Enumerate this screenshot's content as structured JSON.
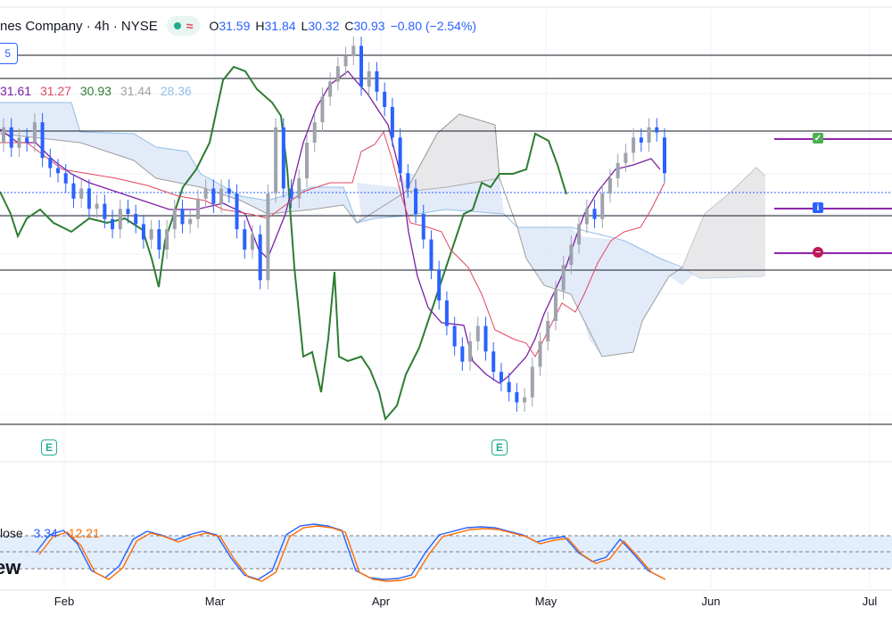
{
  "header": {
    "symbol_title": "nes Company · 4h · NYSE",
    "wave_glyph": "≈",
    "ohlc": [
      {
        "k": "O",
        "v": "31.59"
      },
      {
        "k": "H",
        "v": "31.84"
      },
      {
        "k": "L",
        "v": "30.32"
      },
      {
        "k": "C",
        "v": "30.93"
      }
    ],
    "change": "−0.80 (−2.54%)"
  },
  "badge_label": "5",
  "ichimoku_values": [
    {
      "v": "31.61",
      "color": "#7b1fa2"
    },
    {
      "v": "31.27",
      "color": "#e0475e"
    },
    {
      "v": "30.93",
      "color": "#2e7d32"
    },
    {
      "v": "31.44",
      "color": "#a0a0a0"
    },
    {
      "v": "28.36",
      "color": "#90bfe8"
    }
  ],
  "stoch": {
    "name": "lose",
    "k": "3.34",
    "d": "12.21"
  },
  "logo_text": "ew",
  "earnings_label": "E",
  "colors": {
    "up": "#9ea3ad",
    "down": "#2962ff",
    "conversion": "#7b1fa2",
    "base": "#e0475e",
    "lagging": "#2e7d32",
    "kumo_bull": "#d9e4f7",
    "kumo_bear": "#e8e8ea",
    "span_a": "#90bfe8",
    "span_b": "#9e9e9e",
    "hline": "#131722",
    "check": "#4caf50",
    "info": "#2962ff",
    "stop": "#c2185b",
    "stoch_k": "#2962ff",
    "stoch_d": "#ff6d00"
  },
  "chart_data": {
    "type": "candlestick",
    "x_labels": [
      "Feb",
      "Mar",
      "Apr",
      "May",
      "Jun",
      "Jul"
    ],
    "horizontal_levels": [
      33.3,
      32.85,
      31.9,
      30.05,
      29.05,
      26.2
    ],
    "last_price_line": 30.47,
    "trade_markers": [
      {
        "type": "check-icon",
        "price": 31.85
      },
      {
        "type": "info-icon",
        "price": 30.2
      },
      {
        "type": "stop-icon",
        "price": 29.35
      }
    ],
    "candles_close": [
      31.8,
      31.4,
      31.6,
      31.5,
      31.9,
      31.2,
      31.0,
      30.9,
      30.7,
      30.4,
      30.6,
      30.2,
      30.3,
      30.0,
      29.8,
      30.2,
      30.1,
      29.9,
      29.6,
      29.8,
      29.4,
      29.8,
      30.2,
      29.9,
      30.0,
      30.4,
      30.6,
      30.3,
      30.6,
      30.5,
      29.8,
      29.4,
      29.7,
      28.8,
      30.5,
      31.8,
      30.6,
      30.4,
      30.8,
      31.5,
      31.9,
      32.4,
      32.7,
      33.0,
      33.2,
      33.4,
      32.6,
      32.9,
      32.5,
      32.2,
      31.6,
      30.9,
      30.6,
      30.1,
      29.6,
      29.0,
      28.4,
      27.9,
      27.5,
      27.2,
      27.6,
      27.9,
      27.4,
      27.0,
      26.8,
      26.6,
      26.4,
      26.5,
      27.1,
      27.6,
      28.0,
      28.6,
      29.1,
      29.5,
      29.9,
      30.2,
      30.0,
      30.5,
      30.8,
      31.1,
      31.3,
      31.6,
      31.5,
      31.8,
      31.7,
      30.9
    ],
    "candles_open": [
      31.5,
      31.8,
      31.4,
      31.6,
      31.5,
      31.9,
      31.2,
      31.0,
      30.9,
      30.7,
      30.4,
      30.6,
      30.2,
      30.3,
      30.0,
      29.8,
      30.2,
      30.1,
      29.9,
      29.6,
      29.8,
      29.4,
      29.8,
      30.2,
      29.9,
      30.0,
      30.4,
      30.6,
      30.3,
      30.6,
      30.5,
      29.8,
      29.4,
      29.7,
      28.8,
      30.5,
      31.8,
      30.6,
      30.4,
      30.8,
      31.5,
      31.9,
      32.4,
      32.7,
      33.0,
      33.2,
      33.4,
      32.6,
      32.9,
      32.5,
      32.2,
      31.6,
      30.9,
      30.6,
      30.1,
      29.6,
      29.0,
      28.4,
      27.9,
      27.5,
      27.2,
      27.6,
      27.9,
      27.4,
      27.0,
      26.8,
      26.6,
      26.4,
      26.5,
      27.1,
      27.6,
      28.0,
      28.6,
      29.1,
      29.5,
      29.9,
      30.2,
      30.0,
      30.5,
      30.8,
      31.1,
      31.3,
      31.6,
      31.5,
      31.8,
      31.6
    ],
    "stochastic": {
      "upper": 80,
      "lower": 20,
      "k_last": 3.34,
      "d_last": 12.21
    }
  }
}
